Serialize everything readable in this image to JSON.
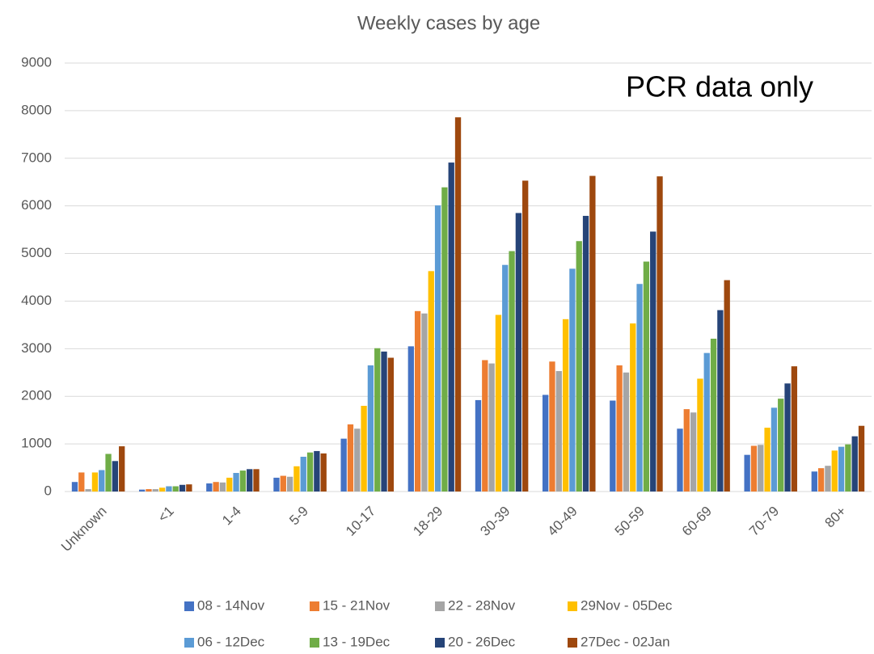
{
  "chart_data": {
    "type": "bar",
    "title": "Weekly cases by age",
    "annotation": "PCR data only",
    "categories": [
      "Unknown",
      "<1",
      "1-4",
      "5-9",
      "10-17",
      "18-29",
      "30-39",
      "40-49",
      "50-59",
      "60-69",
      "70-79",
      "80+"
    ],
    "series": [
      {
        "name": "08 - 14Nov",
        "color": "#4472c4",
        "values": [
          200,
          40,
          170,
          290,
          1110,
          3050,
          1920,
          2030,
          1910,
          1320,
          770,
          420
        ]
      },
      {
        "name": "15 - 21Nov",
        "color": "#ed7d31",
        "values": [
          400,
          50,
          200,
          330,
          1410,
          3790,
          2760,
          2730,
          2650,
          1730,
          960,
          490
        ]
      },
      {
        "name": "22 - 28Nov",
        "color": "#a5a5a5",
        "values": [
          50,
          50,
          190,
          310,
          1320,
          3740,
          2690,
          2530,
          2500,
          1660,
          980,
          540
        ]
      },
      {
        "name": "29Nov - 05Dec",
        "color": "#ffc000",
        "values": [
          400,
          80,
          290,
          530,
          1800,
          4630,
          3710,
          3620,
          3530,
          2370,
          1340,
          860
        ]
      },
      {
        "name": "06 - 12Dec",
        "color": "#5b9bd5",
        "values": [
          450,
          110,
          390,
          730,
          2650,
          6010,
          4760,
          4680,
          4360,
          2910,
          1760,
          940
        ]
      },
      {
        "name": "13 - 19Dec",
        "color": "#70ad47",
        "values": [
          790,
          110,
          440,
          820,
          3010,
          6390,
          5050,
          5260,
          4830,
          3210,
          1950,
          990
        ]
      },
      {
        "name": "20 - 26Dec",
        "color": "#264478",
        "values": [
          640,
          140,
          470,
          850,
          2940,
          6910,
          5850,
          5790,
          5460,
          3810,
          2270,
          1160
        ]
      },
      {
        "name": "27Dec - 02Jan",
        "color": "#9e480e",
        "values": [
          950,
          150,
          470,
          800,
          2810,
          7860,
          6530,
          6630,
          6620,
          4440,
          2630,
          1380
        ]
      }
    ],
    "ylim": [
      0,
      9000
    ],
    "yticks": [
      0,
      1000,
      2000,
      3000,
      4000,
      5000,
      6000,
      7000,
      8000,
      9000
    ],
    "grid": true,
    "legend": "bottom"
  }
}
